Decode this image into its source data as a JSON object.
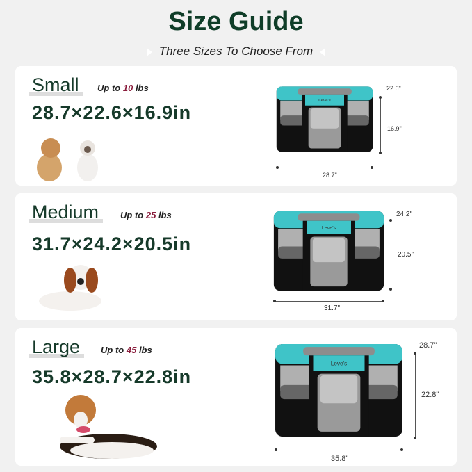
{
  "header": {
    "title": "Size Guide",
    "subtitle": "Three Sizes To Choose From",
    "left_icon": "triangle-right-icon",
    "right_icon": "triangle-left-icon"
  },
  "colors": {
    "title": "#0f3d28",
    "accent_weight": "#8a1c3c",
    "pen_teal": "#3fc4c8",
    "pen_black": "#111111",
    "background": "#f1f1f1"
  },
  "brand": "Leve's",
  "sizes": [
    {
      "name": "Small",
      "up_to": "Up to",
      "weight": "10",
      "unit": "lbs",
      "dimensions": "28.7×22.6×16.9in",
      "length": "28.7\"",
      "width": "22.6\"",
      "height": "16.9\"",
      "pets": "dog and cat"
    },
    {
      "name": "Medium",
      "up_to": "Up to",
      "weight": "25",
      "unit": "lbs",
      "dimensions": "31.7×24.2×20.5in",
      "length": "31.7\"",
      "width": "24.2\"",
      "height": "20.5\"",
      "pets": "spaniel"
    },
    {
      "name": "Large",
      "up_to": "Up to",
      "weight": "45",
      "unit": "lbs",
      "dimensions": "35.8×28.7×22.8in",
      "length": "35.8\"",
      "width": "28.7\"",
      "height": "22.8\"",
      "pets": "beagle"
    }
  ]
}
